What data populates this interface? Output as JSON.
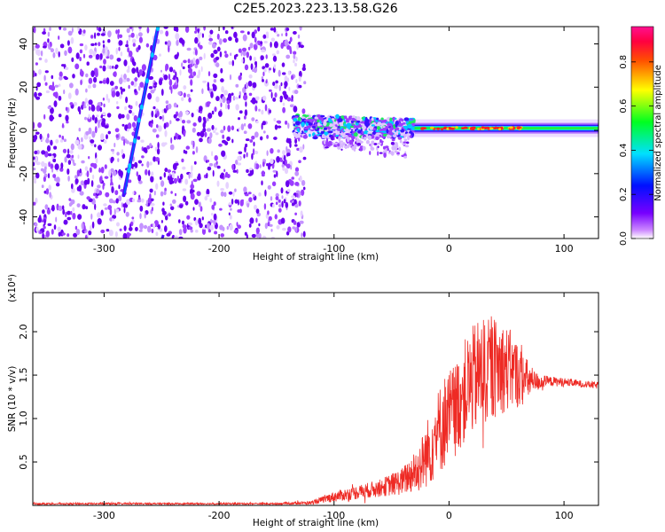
{
  "title": "C2E5.2023.223.13.58.G26",
  "chart_data": [
    {
      "type": "heatmap",
      "name": "spectrogram",
      "xlabel": "Height of straight line (km)",
      "ylabel": "Frequency (Hz)",
      "xlim": [
        -362,
        130
      ],
      "ylim": [
        -50,
        48
      ],
      "xticks": [
        -300,
        -200,
        -100,
        0,
        100
      ],
      "yticks": [
        -40,
        -20,
        0,
        20,
        40
      ],
      "colorbar": {
        "label": "Normalized spectral amplitude",
        "range": [
          0,
          0.96
        ],
        "ticks": [
          "0.0",
          "0.2",
          "0.4",
          "0.6",
          "0.8"
        ],
        "tick_values": [
          0,
          0.2,
          0.4,
          0.6,
          0.8
        ],
        "colormap": "rainbow (white-violet-blue-cyan-green-yellow-red-magenta)"
      },
      "features": {
        "noise_region_x": [
          -362,
          -130
        ],
        "diagonal_trace": {
          "x_start": -283,
          "y_start": -30,
          "x_end": -253,
          "y_end": 48
        },
        "diagonal_lower_tail": {
          "x": -250,
          "y": -50
        },
        "center_band": {
          "x_start": -135,
          "x_end": 130,
          "frequency": 1
        }
      }
    },
    {
      "type": "line",
      "name": "snr",
      "xlabel": "Height of straight line (km)",
      "ylabel": "SNR (10 * v/v)",
      "y_scale_label": "(x10⁴)",
      "xlim": [
        -362,
        130
      ],
      "ylim": [
        0,
        2.45
      ],
      "xticks": [
        -300,
        -200,
        -100,
        0,
        100
      ],
      "yticks": [
        "0.5",
        "1.0",
        "1.5",
        "2.0"
      ],
      "ytick_values": [
        0.5,
        1.0,
        1.5,
        2.0
      ],
      "color": "#ee2a24",
      "envelope": {
        "x": [
          -362,
          -250,
          -150,
          -120,
          -100,
          -80,
          -60,
          -40,
          -25,
          -15,
          -5,
          5,
          15,
          25,
          35,
          45,
          55,
          65,
          75,
          85,
          100,
          115,
          130
        ],
        "center": [
          0.02,
          0.02,
          0.02,
          0.03,
          0.1,
          0.15,
          0.2,
          0.28,
          0.45,
          0.7,
          0.95,
          1.1,
          1.35,
          1.5,
          1.55,
          1.6,
          1.55,
          1.45,
          1.42,
          1.43,
          1.42,
          1.4,
          1.38
        ],
        "spread": [
          0.01,
          0.01,
          0.01,
          0.02,
          0.06,
          0.08,
          0.1,
          0.16,
          0.3,
          0.45,
          0.55,
          0.55,
          0.6,
          0.65,
          0.6,
          0.55,
          0.45,
          0.3,
          0.12,
          0.06,
          0.05,
          0.04,
          0.04
        ]
      }
    }
  ]
}
